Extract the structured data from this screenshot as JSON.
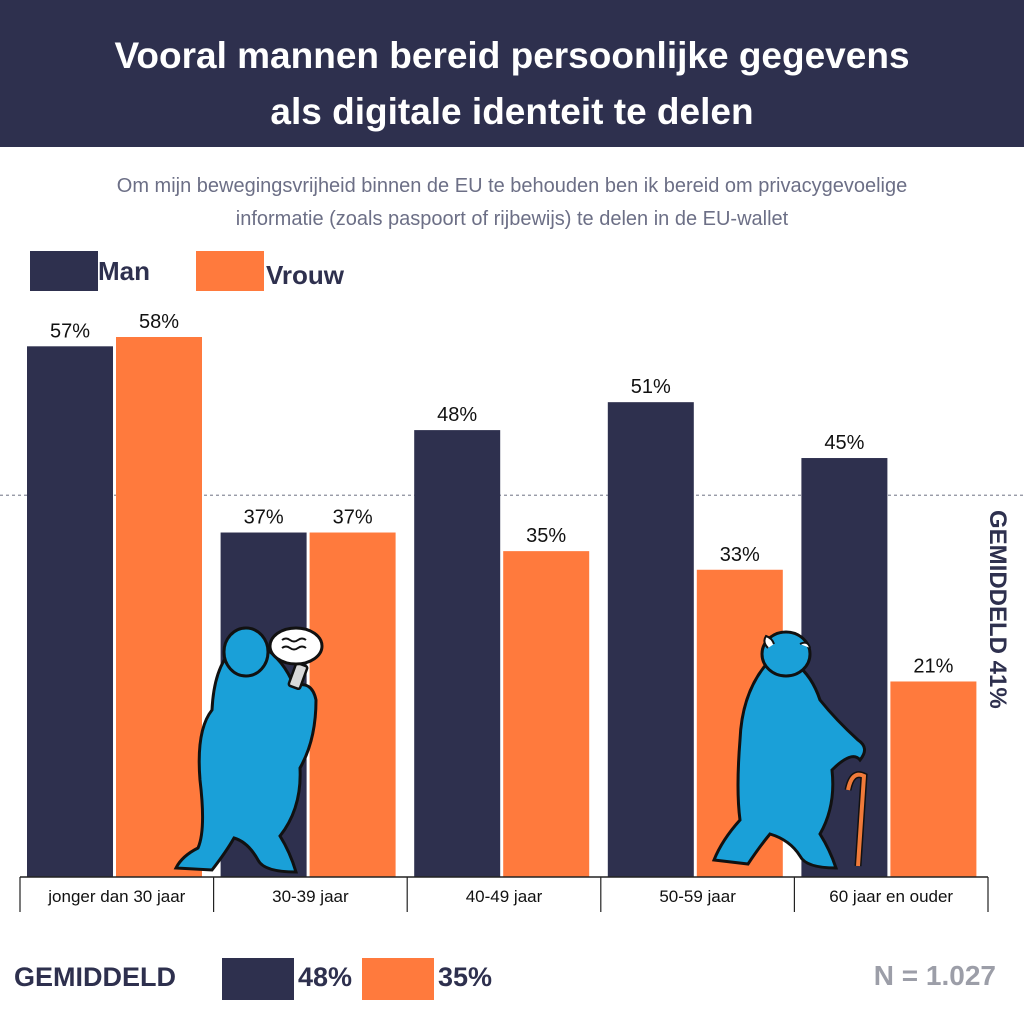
{
  "header": {
    "title_line1": "Vooral mannen bereid persoonlijke gegevens",
    "title_line2": "als digitale identeit te delen"
  },
  "subtitle": {
    "line1": "Om mijn bewegingsvrijheid binnen de EU te behouden ben ik bereid om privacygevoelige",
    "line2": "informatie (zoals paspoort of rijbewijs) te delen in de EU-wallet"
  },
  "colors": {
    "man": "#2e304e",
    "vrouw": "#ff7a3d",
    "figure": "#1aa0d8"
  },
  "chart_data": {
    "type": "bar",
    "categories": [
      "jonger dan 30 jaar",
      "30-39 jaar",
      "40-49 jaar",
      "50-59 jaar",
      "60 jaar en ouder"
    ],
    "series": [
      {
        "name": "Man",
        "values": [
          57,
          37,
          48,
          51,
          45
        ],
        "labels": [
          "57%",
          "37%",
          "48%",
          "51%",
          "45%"
        ]
      },
      {
        "name": "Vrouw",
        "values": [
          58,
          37,
          35,
          33,
          21
        ],
        "labels": [
          "58%",
          "37%",
          "35%",
          "33%",
          "21%"
        ]
      }
    ],
    "legend_position": "top-left",
    "ylim": [
      0,
      58
    ],
    "average": {
      "value": 41,
      "label": "GEMIDDELD 41%"
    }
  },
  "footer": {
    "label": "GEMIDDELD",
    "man_avg": "48%",
    "vrouw_avg": "35%",
    "n_label": "N = 1.027"
  }
}
